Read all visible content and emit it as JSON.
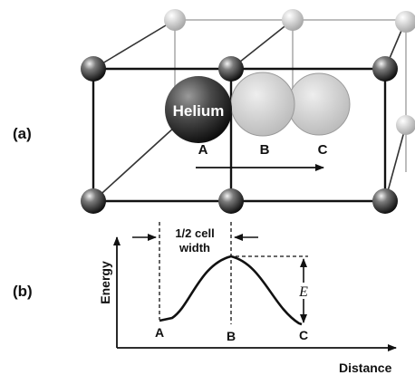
{
  "panel_labels": {
    "a": "(a)",
    "b": "(b)"
  },
  "lattice": {
    "helium_label": "Helium",
    "site_labels": {
      "A": "A",
      "B": "B",
      "C": "C"
    }
  },
  "energy_plot": {
    "width_label_line1": "1/2 cell",
    "width_label_line2": "width",
    "energy_symbol": "E",
    "y_axis_label": "Energy",
    "x_axis_label": "Distance",
    "points": {
      "A": "A",
      "B": "B",
      "C": "C"
    }
  }
}
